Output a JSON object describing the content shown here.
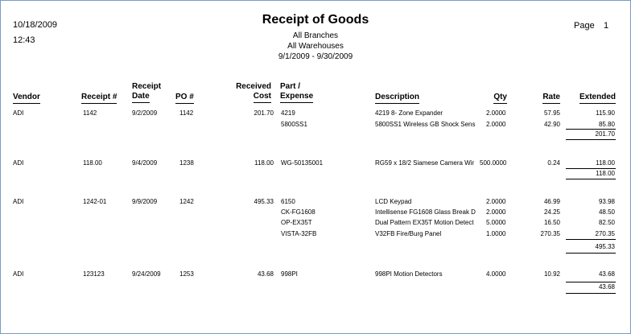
{
  "report": {
    "date": "10/18/2009",
    "time": "12:43",
    "title": "Receipt of Goods",
    "branches": "All Branches",
    "warehouses": "All Warehouses",
    "range": "9/1/2009 - 9/30/2009",
    "page_label": "Page",
    "page_number": "1"
  },
  "columns": {
    "vendor": "Vendor",
    "receipt_no": "Receipt #",
    "receipt_date_1": "Receipt",
    "receipt_date_2": "Date",
    "po": "PO #",
    "received_cost_1": "Received",
    "received_cost_2": "Cost",
    "part_1": "Part /",
    "part_2": "Expense",
    "description": "Description",
    "qty": "Qty",
    "rate": "Rate",
    "extended": "Extended"
  },
  "receipts": [
    {
      "vendor": "ADI",
      "receipt": "1142",
      "date": "9/2/2009",
      "po": "1142",
      "cost": "201.70",
      "lines": [
        {
          "part": "4219",
          "description": "4219 8- Zone Expander",
          "qty": "2.0000",
          "rate": "57.95",
          "extended": "115.90"
        },
        {
          "part": "5800SS1",
          "description": "5800SS1 Wireless GB Shock Sens",
          "qty": "2.0000",
          "rate": "42.90",
          "extended": "85.80"
        }
      ],
      "total": "201.70"
    },
    {
      "vendor": "ADI",
      "receipt": "118.00",
      "date": "9/4/2009",
      "po": "1238",
      "cost": "118.00",
      "lines": [
        {
          "part": "WG-50135001",
          "description": "RG59 x 18/2 Siamese Camera Wir",
          "qty": "500.0000",
          "rate": "0.24",
          "extended": "118.00"
        }
      ],
      "total": "118.00"
    },
    {
      "vendor": "ADI",
      "receipt": "1242-01",
      "date": "9/9/2009",
      "po": "1242",
      "cost": "495.33",
      "lines": [
        {
          "part": "6150",
          "description": "LCD Keypad",
          "qty": "2.0000",
          "rate": "46.99",
          "extended": "93.98"
        },
        {
          "part": "CK-FG1608",
          "description": "Intellisense FG1608 Glass Break D",
          "qty": "2.0000",
          "rate": "24.25",
          "extended": "48.50"
        },
        {
          "part": "OP-EX35T",
          "description": "Dual Pattern EX35T Motion Detect",
          "qty": "5.0000",
          "rate": "16.50",
          "extended": "82.50"
        },
        {
          "part": "VISTA-32FB",
          "description": "V32FB Fire/Burg Panel",
          "qty": "1.0000",
          "rate": "270.35",
          "extended": "270.35"
        }
      ],
      "total": "495.33"
    },
    {
      "vendor": "ADI",
      "receipt": "123123",
      "date": "9/24/2009",
      "po": "1253",
      "cost": "43.68",
      "lines": [
        {
          "part": "998PI",
          "description": "998PI Motion Detectors",
          "qty": "4.0000",
          "rate": "10.92",
          "extended": "43.68"
        }
      ],
      "total": "43.68"
    }
  ]
}
